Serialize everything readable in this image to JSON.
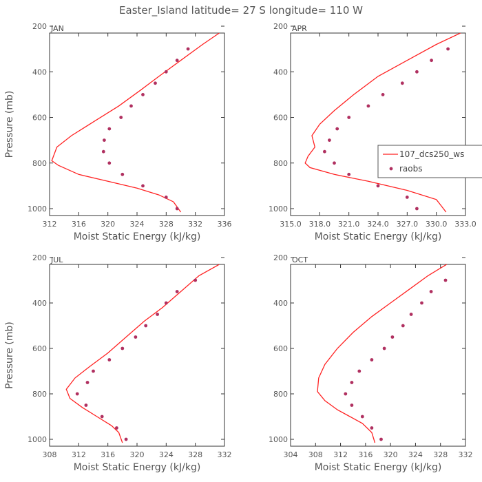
{
  "title": "Easter_Island  latitude= 27 S longitude= 110 W",
  "ylabel": "Pressure (mb)",
  "xlabel": "Moist Static Energy (kJ/kg)",
  "colors": {
    "model_line": "#ff2222",
    "raobs_dot": "#b03060",
    "text": "#555555"
  },
  "legend": {
    "model": "107_dcs250_ws",
    "raobs": "raobs",
    "placement": "right-of-APR-panel"
  },
  "chart_data": [
    {
      "type": "line",
      "panel": "JAN",
      "xlim": [
        312,
        336
      ],
      "ylim": [
        1000,
        200
      ],
      "xticks": [
        "312",
        "316",
        "320",
        "324",
        "328",
        "332",
        "336"
      ],
      "yticks": [
        "200",
        "400",
        "600",
        "800",
        "1000"
      ],
      "series": [
        {
          "name": "107_dcs250_ws",
          "kind": "line",
          "x": [
            335.3,
            333.0,
            330.0,
            327.0,
            324.5,
            321.5,
            318.0,
            315.0,
            313.0,
            312.3,
            313.2,
            316.0,
            320.0,
            324.0,
            327.0,
            329.0,
            330.0
          ],
          "y": [
            230,
            280,
            350,
            420,
            480,
            550,
            620,
            680,
            730,
            790,
            810,
            850,
            880,
            910,
            940,
            970,
            1015
          ]
        },
        {
          "name": "raobs",
          "kind": "scatter",
          "x": [
            331.0,
            329.5,
            328.0,
            326.5,
            324.8,
            323.2,
            321.8,
            320.2,
            319.5,
            319.4,
            320.2,
            322.0,
            324.8,
            328.0,
            329.5
          ],
          "y": [
            300,
            350,
            400,
            450,
            500,
            550,
            600,
            650,
            700,
            750,
            800,
            850,
            900,
            950,
            1000
          ]
        }
      ]
    },
    {
      "type": "line",
      "panel": "APR",
      "xlim": [
        315.0,
        333.0
      ],
      "ylim": [
        1000,
        200
      ],
      "xticks": [
        "315.0",
        "318.0",
        "321.0",
        "324.0",
        "327.0",
        "330.0",
        "333.0"
      ],
      "yticks": [
        "200",
        "400",
        "600",
        "800",
        "1000"
      ],
      "series": [
        {
          "name": "107_dcs250_ws",
          "kind": "line",
          "x": [
            332.5,
            330.0,
            327.0,
            324.0,
            321.5,
            319.5,
            318.0,
            317.2,
            317.5,
            316.8,
            316.5,
            317.0,
            319.5,
            323.0,
            327.0,
            330.0,
            331.0
          ],
          "y": [
            230,
            280,
            350,
            420,
            500,
            570,
            630,
            680,
            730,
            770,
            800,
            820,
            850,
            880,
            920,
            960,
            1015
          ]
        },
        {
          "name": "raobs",
          "kind": "scatter",
          "x": [
            331.2,
            329.5,
            328.0,
            326.5,
            324.5,
            323.0,
            321.0,
            319.8,
            319.0,
            318.5,
            319.5,
            321.0,
            324.0,
            327.0,
            328.0
          ],
          "y": [
            300,
            350,
            400,
            450,
            500,
            550,
            600,
            650,
            700,
            750,
            800,
            850,
            900,
            950,
            1000
          ]
        }
      ]
    },
    {
      "type": "line",
      "panel": "JUL",
      "xlim": [
        308,
        332
      ],
      "ylim": [
        1000,
        200
      ],
      "xticks": [
        "308",
        "312",
        "316",
        "320",
        "324",
        "328",
        "332"
      ],
      "yticks": [
        "200",
        "400",
        "600",
        "800",
        "1000"
      ],
      "series": [
        {
          "name": "107_dcs250_ws",
          "kind": "line",
          "x": [
            331.3,
            328.5,
            326.0,
            323.5,
            321.0,
            318.5,
            316.0,
            313.5,
            311.5,
            310.3,
            310.8,
            312.5,
            314.5,
            316.5,
            317.5,
            318.0
          ],
          "y": [
            230,
            280,
            350,
            420,
            480,
            550,
            620,
            680,
            730,
            780,
            820,
            860,
            900,
            940,
            970,
            1015
          ]
        },
        {
          "name": "raobs",
          "kind": "scatter",
          "x": [
            328.0,
            325.5,
            324.0,
            322.8,
            321.2,
            319.8,
            318.0,
            316.2,
            314.0,
            313.2,
            311.8,
            313.0,
            315.2,
            317.2,
            318.5
          ],
          "y": [
            300,
            350,
            400,
            450,
            500,
            550,
            600,
            650,
            700,
            750,
            800,
            850,
            900,
            950,
            1000
          ]
        }
      ]
    },
    {
      "type": "line",
      "panel": "OCT",
      "xlim": [
        304,
        332
      ],
      "ylim": [
        1000,
        200
      ],
      "xticks": [
        "304",
        "308",
        "312",
        "316",
        "320",
        "324",
        "328",
        "332"
      ],
      "yticks": [
        "200",
        "400",
        "600",
        "800",
        "1000"
      ],
      "series": [
        {
          "name": "107_dcs250_ws",
          "kind": "line",
          "x": [
            329.0,
            326.0,
            323.0,
            320.0,
            317.0,
            314.0,
            311.5,
            309.5,
            308.5,
            308.3,
            309.5,
            311.5,
            313.5,
            315.5,
            317.0,
            317.5
          ],
          "y": [
            230,
            280,
            340,
            400,
            460,
            530,
            600,
            670,
            730,
            790,
            830,
            870,
            900,
            930,
            970,
            1015
          ]
        },
        {
          "name": "raobs",
          "kind": "scatter",
          "x": [
            328.8,
            326.5,
            325.0,
            323.3,
            322.0,
            320.3,
            319.0,
            317.0,
            315.0,
            313.8,
            312.8,
            313.8,
            315.5,
            317.0,
            318.5
          ],
          "y": [
            300,
            350,
            400,
            450,
            500,
            550,
            600,
            650,
            700,
            750,
            800,
            850,
            900,
            950,
            1000
          ]
        }
      ]
    }
  ]
}
